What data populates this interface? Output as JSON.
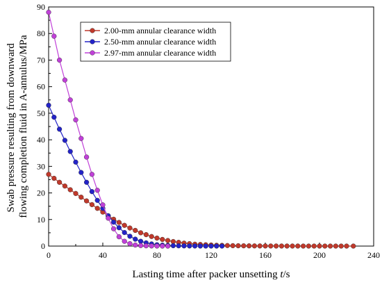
{
  "chart_data": {
    "type": "line",
    "title": "",
    "xlabel": "Lasting time after packer unsetting t/s",
    "xlabel_parts": {
      "text": "Lasting time after packer unsetting ",
      "var": "t",
      "unit": "/s"
    },
    "ylabel_lines": [
      "Swab pressure resulting from downward",
      "flowing completion fluid in A-annulus/MPa"
    ],
    "xlim": [
      0,
      240
    ],
    "ylim": [
      0,
      90
    ],
    "xticks": [
      0,
      40,
      80,
      120,
      160,
      200,
      240
    ],
    "yticks": [
      0,
      10,
      20,
      30,
      40,
      50,
      60,
      70,
      80,
      90
    ],
    "grid": false,
    "legend_position": "top-center",
    "series": [
      {
        "name": "2.00-mm annular clearance width",
        "color": "#c0392b",
        "marker": "circle",
        "x": [
          0,
          4,
          8,
          12,
          16,
          20,
          24,
          28,
          32,
          36,
          40,
          44,
          48,
          52,
          56,
          60,
          64,
          68,
          72,
          76,
          80,
          84,
          88,
          92,
          96,
          100,
          104,
          108,
          112,
          116,
          120,
          124,
          128,
          132,
          136,
          140,
          144,
          148,
          152,
          156,
          160,
          164,
          168,
          172,
          176,
          180,
          184,
          188,
          192,
          196,
          200,
          204,
          208,
          212,
          216,
          220,
          225
        ],
        "values": [
          27.0,
          25.5,
          24.0,
          22.6,
          21.2,
          19.8,
          18.4,
          17.0,
          15.6,
          14.2,
          12.8,
          11.4,
          10.1,
          8.9,
          7.8,
          6.8,
          5.9,
          5.0,
          4.3,
          3.6,
          3.0,
          2.5,
          2.1,
          1.7,
          1.4,
          1.1,
          0.9,
          0.7,
          0.6,
          0.5,
          0.4,
          0.3,
          0.25,
          0.2,
          0.15,
          0.12,
          0.1,
          0.08,
          0.06,
          0.05,
          0.04,
          0.03,
          0.02,
          0.02,
          0.01,
          0.01,
          0.01,
          0.0,
          0.0,
          0.0,
          0.0,
          0.0,
          0.0,
          0.0,
          0.0,
          0.0,
          0.0
        ]
      },
      {
        "name": "2.50-mm annular clearance width",
        "color": "#2323c8",
        "marker": "circle",
        "x": [
          0,
          4,
          8,
          12,
          16,
          20,
          24,
          28,
          32,
          36,
          40,
          44,
          48,
          52,
          56,
          60,
          64,
          68,
          72,
          76,
          80,
          84,
          88,
          92,
          96,
          100,
          104,
          108,
          112,
          116,
          120,
          124,
          128
        ],
        "values": [
          53.0,
          48.5,
          44.0,
          39.8,
          35.6,
          31.6,
          27.7,
          24.0,
          20.5,
          17.2,
          14.2,
          11.4,
          9.0,
          6.9,
          5.1,
          3.7,
          2.6,
          1.8,
          1.2,
          0.8,
          0.5,
          0.35,
          0.25,
          0.15,
          0.1,
          0.07,
          0.05,
          0.03,
          0.02,
          0.01,
          0.0,
          0.0,
          0.0
        ]
      },
      {
        "name": "2.97-mm annular clearance width",
        "color": "#c040d8",
        "marker": "circle",
        "x": [
          0,
          4,
          8,
          12,
          16,
          20,
          24,
          28,
          32,
          36,
          40,
          44,
          48,
          52,
          56,
          60,
          64,
          68,
          72,
          76,
          80,
          84,
          88
        ],
        "values": [
          88.0,
          79.0,
          70.0,
          62.5,
          55.0,
          47.5,
          40.5,
          33.5,
          27.0,
          21.0,
          15.5,
          10.5,
          6.5,
          3.5,
          1.8,
          0.9,
          0.4,
          0.2,
          0.1,
          0.05,
          0.02,
          0.0,
          0.0
        ]
      }
    ]
  }
}
